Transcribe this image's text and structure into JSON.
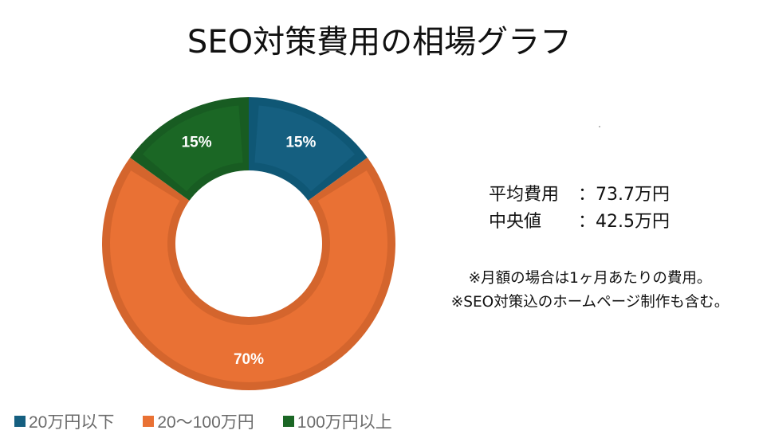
{
  "title": "SEO対策費用の相場グラフ",
  "chart_data": {
    "type": "pie",
    "subtype": "donut",
    "title": "SEO対策費用の相場グラフ",
    "categories": [
      "20万円以下",
      "20〜100万円",
      "100万円以上"
    ],
    "values": [
      15,
      70,
      15
    ],
    "labels": [
      "15%",
      "70%",
      "15%"
    ],
    "unit": "%",
    "colors": [
      "#155f80",
      "#e97134",
      "#1b6725"
    ],
    "border_colors": [
      "#0f5775",
      "#d4652d",
      "#185c22"
    ],
    "legend_position": "bottom-left",
    "start_angle_deg": 0,
    "direction": "clockwise"
  },
  "stats": {
    "average_label": "平均費用",
    "average_value": "73.7万円",
    "median_label": "中央値",
    "median_value": "42.5万円",
    "colon": "："
  },
  "notes": [
    "※月額の場合は1ヶ月あたりの費用。",
    "※SEO対策込のホームページ制作も含む。"
  ],
  "legend": [
    {
      "label": "20万円以下",
      "color": "#155f80"
    },
    {
      "label": "20〜100万円",
      "color": "#e97134"
    },
    {
      "label": "100万円以上",
      "color": "#1b6725"
    }
  ]
}
